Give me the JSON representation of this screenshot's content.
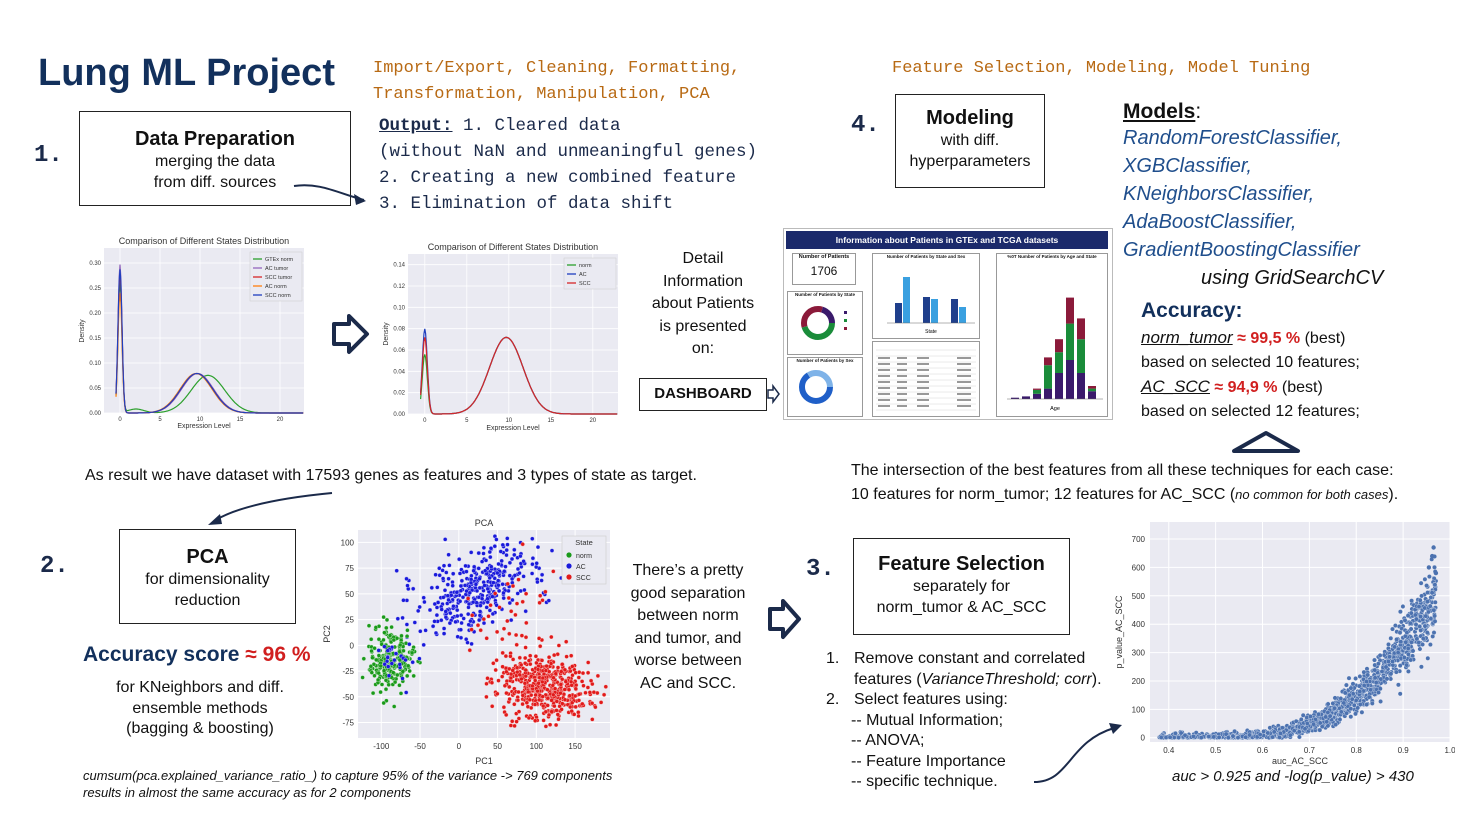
{
  "title": "Lung ML Project",
  "top_left_tags": [
    "Import/Export, Cleaning, Formatting,",
    "Transformation, Manipulation, PCA"
  ],
  "top_right_tags": "Feature Selection, Modeling, Model Tuning",
  "step1": {
    "number": "1.",
    "box_title": "Data Preparation",
    "box_sub": [
      "merging the data",
      "from diff. sources"
    ],
    "output_label": "Output:",
    "output_lines": [
      "1. Cleared data",
      "(without NaN and unmeaningful genes)",
      "2. Creating a new combined feature",
      "3. Elimination of data shift"
    ]
  },
  "dist_chart_before": {
    "title": "Comparison of Different States Distribution",
    "xlabel": "Expression Level",
    "ylabel": "Density",
    "yticks": [
      "0.00",
      "0.05",
      "0.10",
      "0.15",
      "0.20",
      "0.25",
      "0.30"
    ],
    "xticks": [
      "0",
      "5",
      "10",
      "15",
      "20"
    ],
    "legend": [
      "GTEx norm",
      "AC tumor",
      "SCC tumor",
      "AC norm",
      "SCC norm"
    ],
    "colors": [
      "#2ca02c",
      "#9467bd",
      "#d62728",
      "#ff7f0e",
      "#1f3fbf"
    ]
  },
  "dist_chart_after": {
    "title": "Comparison of Different States Distribution",
    "xlabel": "Expression Level",
    "ylabel": "Density",
    "yticks": [
      "0.00",
      "0.02",
      "0.04",
      "0.06",
      "0.08",
      "0.10",
      "0.12",
      "0.14"
    ],
    "xticks": [
      "0",
      "5",
      "10",
      "15",
      "20"
    ],
    "legend": [
      "norm",
      "AC",
      "SCC"
    ],
    "colors": [
      "#2ca02c",
      "#1f3fbf",
      "#d62728"
    ]
  },
  "detail_text": [
    "Detail",
    "Information",
    "about Patients",
    "is presented",
    "on:"
  ],
  "dashboard_button": "DASHBOARD",
  "dashboard": {
    "title": "Information about Patients in GTEx and TCGA datasets",
    "num_patients_label": "Number of Patients",
    "num_patients_value": "1706",
    "by_state_label": "Number of Patients by State",
    "by_sex_label": "Number of Patients by Sex",
    "by_state_sex_label": "Number of Patients by State and Sex",
    "pct_by_age_label": "%0T Number of Patients by Age and State",
    "age_axis": "Age",
    "state_axis": "State"
  },
  "step4": {
    "number": "4.",
    "box_title": "Modeling",
    "box_sub": [
      "with diff.",
      "hyperparameters"
    ]
  },
  "models": {
    "label": "Models",
    "colon": ":",
    "list": [
      "RandomForestClassifier,",
      "XGBClassifier,",
      "KNeighborsClassifier,",
      "AdaBoostClassifier,",
      "GradientBoostingClassifier"
    ],
    "using": "using GridSearchCV"
  },
  "accuracy": {
    "label": "Accuracy:",
    "line1_name": "norm_tumor",
    "line1_val": "≈ 99,5 %",
    "line1_note": "(best)",
    "line2": "based on selected 10 features;",
    "line3_name": "AC_SCC",
    "line3_val": "≈ 94,9 %",
    "line3_note": "(best)",
    "line4": "based on selected 12 features;"
  },
  "dataset_result": "As result we have dataset with 17593 genes as features and 3 types of state as target.",
  "intersection": {
    "line1": "The intersection of the best features from all these techniques for each case:",
    "line2a": "10 features for norm_tumor; 12 features for AC_SCC (",
    "line2b": "no common for both cases",
    "line2c": ")."
  },
  "step2": {
    "number": "2.",
    "box_title": "PCA",
    "box_sub": [
      "for dimensionality",
      "reduction"
    ],
    "acc_label": "Accuracy score",
    "acc_val": "≈ 96 %",
    "acc_desc": [
      "for KNeighbors and diff.",
      "ensemble methods",
      "(bagging & boosting)"
    ],
    "footnote": [
      "cumsum(pca.explained_variance_ratio_) to capture 95% of the variance -> 769 components",
      "results in almost the same accuracy as for 2 components"
    ]
  },
  "pca_chart": {
    "title": "PCA",
    "xlabel": "PC1",
    "ylabel": "PC2",
    "xticks": [
      "-100",
      "-50",
      "0",
      "50",
      "100",
      "150"
    ],
    "yticks": [
      "100",
      "75",
      "50",
      "25",
      "0",
      "-25",
      "-50",
      "-75"
    ],
    "legend_title": "State",
    "legend": [
      "norm",
      "AC",
      "SCC"
    ],
    "colors": [
      "#1a9a1a",
      "#1a1adb",
      "#e11a1a"
    ]
  },
  "separation_text": [
    "There’s a pretty",
    "good separation",
    "between norm",
    "and tumor, and",
    "worse between",
    "AC and SCC."
  ],
  "step3": {
    "number": "3.",
    "box_title": "Feature Selection",
    "box_sub": [
      "separately for",
      "norm_tumor & AC_SCC"
    ],
    "list1_num": "1.",
    "list1_a": "Remove constant and correlated",
    "list1_b": "features (",
    "list1_b_ital": "VarianceThreshold; corr",
    "list1_b_end": ").",
    "list2_num": "2.",
    "list2": "Select features using:",
    "methods": [
      "-- Mutual Information;",
      "-- ANOVA;",
      "-- Feature Importance",
      "-- specific technique."
    ]
  },
  "scatter_chart": {
    "xlabel": "auc_AC_SCC",
    "ylabel": "p_value_AC_SCC",
    "xticks": [
      "0.4",
      "0.5",
      "0.6",
      "0.7",
      "0.8",
      "0.9",
      "1.0"
    ],
    "yticks": [
      "0",
      "100",
      "200",
      "300",
      "400",
      "500",
      "600",
      "700"
    ],
    "caption": "auc > 0.925 and -log(p_value) > 430",
    "color": "#4c72b0"
  }
}
